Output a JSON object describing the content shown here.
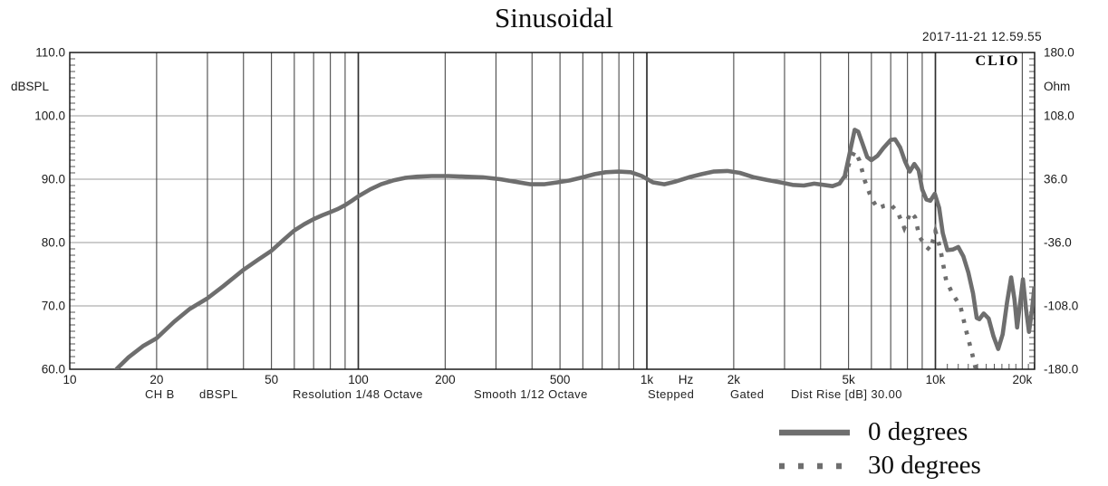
{
  "title": "Sinusoidal",
  "timestamp": "2017-11-21 12.59.55",
  "brand": "CLIO",
  "status_bar": {
    "items": [
      "CH B",
      "dBSPL",
      "Resolution 1/48 Octave",
      "Smooth 1/12 Octave",
      "Stepped",
      "Gated",
      "Dist Rise [dB] 30.00"
    ]
  },
  "legend": {
    "entries": [
      {
        "label": "0 degrees",
        "style": "solid"
      },
      {
        "label": "30 degrees",
        "style": "dotted"
      }
    ]
  },
  "chart_data": {
    "type": "line",
    "title": "Sinusoidal",
    "x_axis": {
      "unit": "Hz",
      "scale": "log",
      "min": 10,
      "max": 22000,
      "tick_values": [
        10,
        20,
        50,
        100,
        200,
        500,
        1000,
        2000,
        5000,
        10000,
        20000
      ],
      "tick_labels": [
        "10",
        "20",
        "50",
        "100",
        "200",
        "500",
        "1k",
        "2k",
        "5k",
        "10k",
        "20k"
      ],
      "gridline_values": [
        20,
        30,
        40,
        50,
        60,
        70,
        80,
        90,
        100,
        200,
        300,
        400,
        500,
        600,
        700,
        800,
        900,
        1000,
        2000,
        3000,
        4000,
        5000,
        6000,
        7000,
        8000,
        9000,
        10000,
        20000
      ],
      "decade_values": [
        100,
        1000,
        10000
      ],
      "minor_tick_values": [
        11000,
        12000,
        13000,
        14000,
        15000,
        16000,
        17000,
        18000,
        19000,
        21000,
        22000
      ]
    },
    "y_left": {
      "unit": "dBSPL",
      "min": 60,
      "max": 110,
      "tick_labels": [
        "110.0",
        "100.0",
        "90.0",
        "80.0",
        "70.0",
        "60.0"
      ],
      "tick_values": [
        110,
        100,
        90,
        80,
        70,
        60
      ],
      "gridline_values": [
        100,
        90,
        80,
        70
      ],
      "minor_tick_step": 1
    },
    "y_right": {
      "unit": "Ohm",
      "min": -180,
      "max": 180,
      "tick_labels": [
        "180.0",
        "108.0",
        "36.0",
        "-36.0",
        "-108.0",
        "-180.0"
      ],
      "tick_values": [
        180,
        108,
        36,
        -36,
        -108,
        -180
      ]
    },
    "grid": true,
    "legend_position": "bottom-right",
    "series": [
      {
        "name": "0 degrees",
        "style": "solid",
        "points": [
          [
            14.5,
            60
          ],
          [
            16,
            61.9
          ],
          [
            18,
            63.7
          ],
          [
            20,
            64.9
          ],
          [
            23,
            67.5
          ],
          [
            26,
            69.5
          ],
          [
            30,
            71.2
          ],
          [
            34,
            73.1
          ],
          [
            40,
            75.7
          ],
          [
            45,
            77.3
          ],
          [
            50,
            78.7
          ],
          [
            55,
            80.4
          ],
          [
            60,
            81.9
          ],
          [
            65,
            82.9
          ],
          [
            70,
            83.7
          ],
          [
            75,
            84.3
          ],
          [
            80,
            84.8
          ],
          [
            85,
            85.3
          ],
          [
            90,
            85.9
          ],
          [
            95,
            86.6
          ],
          [
            100,
            87.3
          ],
          [
            110,
            88.4
          ],
          [
            120,
            89.2
          ],
          [
            132,
            89.8
          ],
          [
            145,
            90.2
          ],
          [
            160,
            90.4
          ],
          [
            180,
            90.5
          ],
          [
            205,
            90.5
          ],
          [
            235,
            90.4
          ],
          [
            270,
            90.3
          ],
          [
            310,
            90.0
          ],
          [
            350,
            89.6
          ],
          [
            395,
            89.2
          ],
          [
            440,
            89.2
          ],
          [
            490,
            89.5
          ],
          [
            540,
            89.8
          ],
          [
            600,
            90.3
          ],
          [
            660,
            90.8
          ],
          [
            720,
            91.1
          ],
          [
            800,
            91.2
          ],
          [
            880,
            91.1
          ],
          [
            960,
            90.5
          ],
          [
            1050,
            89.5
          ],
          [
            1150,
            89.2
          ],
          [
            1250,
            89.6
          ],
          [
            1400,
            90.3
          ],
          [
            1550,
            90.8
          ],
          [
            1700,
            91.2
          ],
          [
            1900,
            91.3
          ],
          [
            2100,
            91.0
          ],
          [
            2350,
            90.3
          ],
          [
            2600,
            89.9
          ],
          [
            2900,
            89.5
          ],
          [
            3200,
            89.1
          ],
          [
            3500,
            89.0
          ],
          [
            3800,
            89.3
          ],
          [
            4100,
            89.1
          ],
          [
            4400,
            88.9
          ],
          [
            4650,
            89.3
          ],
          [
            4850,
            90.5
          ],
          [
            5050,
            94.2
          ],
          [
            5250,
            97.8
          ],
          [
            5400,
            97.5
          ],
          [
            5600,
            95.5
          ],
          [
            5800,
            93.5
          ],
          [
            6000,
            93.0
          ],
          [
            6300,
            93.7
          ],
          [
            6600,
            94.9
          ],
          [
            7000,
            96.2
          ],
          [
            7250,
            96.3
          ],
          [
            7550,
            95.0
          ],
          [
            7850,
            92.8
          ],
          [
            8150,
            91.2
          ],
          [
            8450,
            92.4
          ],
          [
            8750,
            91.4
          ],
          [
            9000,
            88.4
          ],
          [
            9300,
            86.8
          ],
          [
            9600,
            86.6
          ],
          [
            9950,
            87.7
          ],
          [
            10300,
            85.5
          ],
          [
            10600,
            81.5
          ],
          [
            11000,
            78.8
          ],
          [
            11500,
            78.9
          ],
          [
            12000,
            79.3
          ],
          [
            12500,
            77.8
          ],
          [
            13000,
            75.3
          ],
          [
            13500,
            72.0
          ],
          [
            13900,
            68.1
          ],
          [
            14200,
            67.9
          ],
          [
            14700,
            68.8
          ],
          [
            15300,
            68.0
          ],
          [
            15900,
            65.2
          ],
          [
            16500,
            63.2
          ],
          [
            17100,
            65.5
          ],
          [
            17700,
            70.5
          ],
          [
            18300,
            74.5
          ],
          [
            18800,
            71.0
          ],
          [
            19200,
            66.6
          ],
          [
            19700,
            70.8
          ],
          [
            20100,
            74.2
          ],
          [
            20600,
            69.5
          ],
          [
            21100,
            65.9
          ],
          [
            21600,
            69.2
          ],
          [
            22000,
            72.8
          ]
        ]
      },
      {
        "name": "30 degrees",
        "style": "dotted",
        "points": [
          [
            4850,
            90.2
          ],
          [
            5050,
            92.8
          ],
          [
            5250,
            94.4
          ],
          [
            5450,
            93.0
          ],
          [
            5700,
            89.7
          ],
          [
            6000,
            87.0
          ],
          [
            6300,
            85.4
          ],
          [
            6650,
            85.8
          ],
          [
            7000,
            86.0
          ],
          [
            7400,
            84.8
          ],
          [
            7800,
            82.3
          ],
          [
            8200,
            84.8
          ],
          [
            8500,
            84.0
          ],
          [
            8800,
            81.0
          ],
          [
            9200,
            79.5
          ],
          [
            9600,
            78.8
          ],
          [
            10000,
            81.8
          ],
          [
            10400,
            79.0
          ],
          [
            10900,
            74.0
          ],
          [
            11500,
            71.8
          ],
          [
            12200,
            70.0
          ],
          [
            12800,
            66.0
          ],
          [
            13400,
            62.5
          ],
          [
            13800,
            60.0
          ],
          [
            14100,
            57.0
          ]
        ]
      }
    ],
    "colors": {
      "curve": "#6e6e6e",
      "grid_horizontal": "#9b9b9b",
      "grid_vertical": "#4a4a4a",
      "grid_decade": "#2f2f2f",
      "frame": "#1a1a1a",
      "tick": "#555555",
      "label_text": "#1b1b1b"
    }
  }
}
